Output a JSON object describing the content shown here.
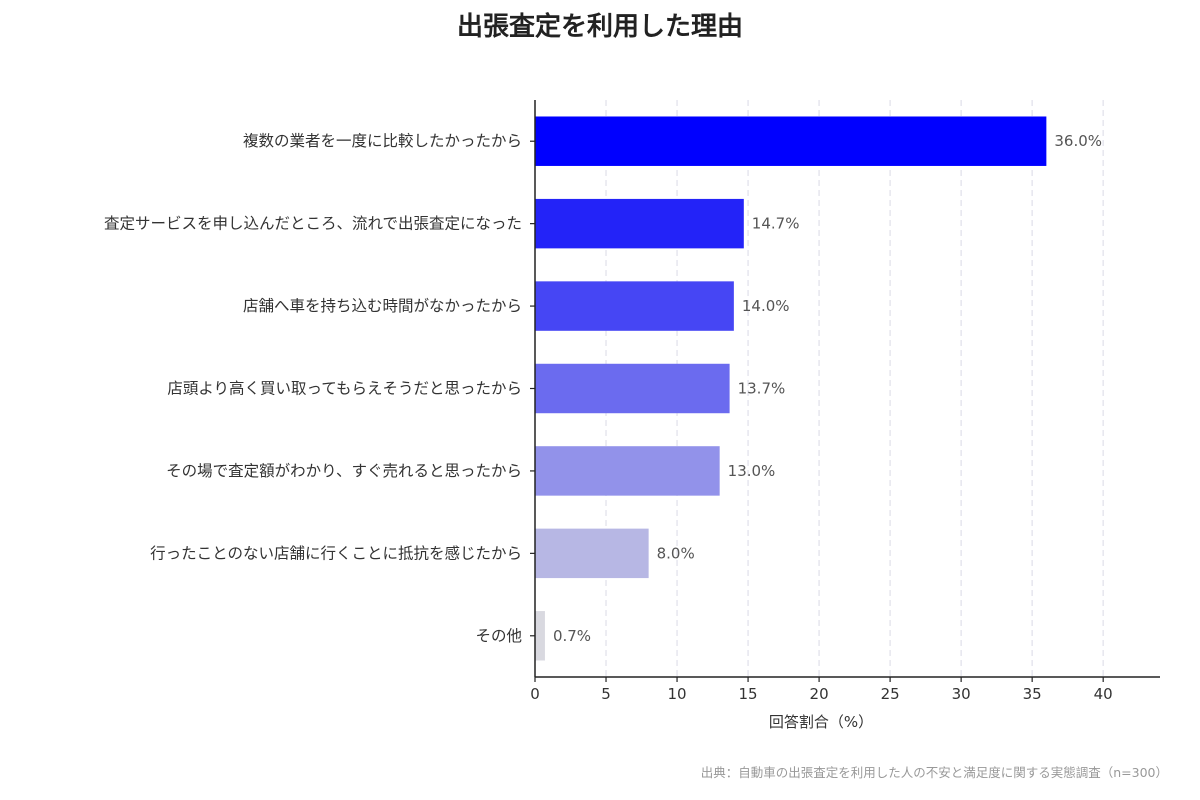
{
  "chart_data": {
    "type": "bar",
    "orientation": "horizontal",
    "title": "出張査定を利用した理由",
    "xlabel": "回答割合（%）",
    "ylabel": "",
    "xlim": [
      0,
      44
    ],
    "xticks": [
      0,
      5,
      10,
      15,
      20,
      25,
      30,
      35,
      40
    ],
    "grid": "vertical",
    "categories": [
      "複数の業者を一度に比較したかったから",
      "査定サービスを申し込んだところ、流れで出張査定になった",
      "店舗へ車を持ち込む時間がなかったから",
      "店頭より高く買い取ってもらえそうだと思ったから",
      "その場で査定額がわかり、すぐ売れると思ったから",
      "行ったことのない店舗に行くことに抵抗を感じたから",
      "その他"
    ],
    "values": [
      36.0,
      14.7,
      14.0,
      13.7,
      13.0,
      8.0,
      0.7
    ],
    "value_labels": [
      "36.0%",
      "14.7%",
      "14.0%",
      "13.7%",
      "13.0%",
      "8.0%",
      "0.7%"
    ],
    "colors": [
      "#0000ff",
      "#2323f8",
      "#4646f4",
      "#6b6bef",
      "#9292ea",
      "#b7b7e4",
      "#d9d9e0"
    ],
    "source": "出典：自動車の出張査定を利用した人の不安と満足度に関する実態調査（n=300）"
  }
}
